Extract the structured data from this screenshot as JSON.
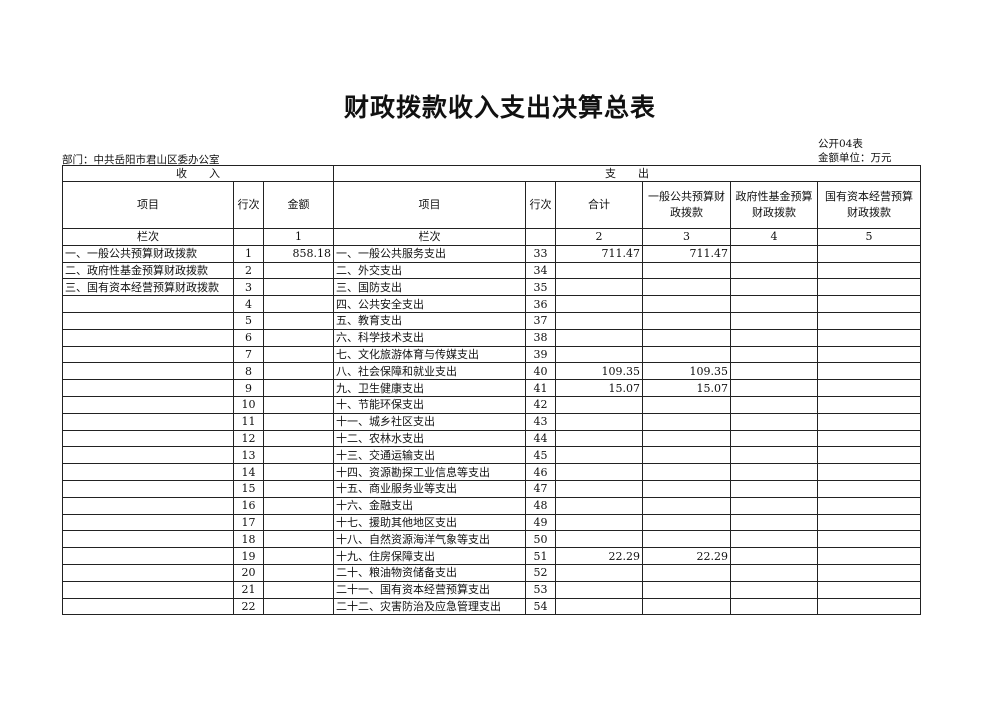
{
  "title": "财政拨款收入支出决算总表",
  "form_no": "公开04表",
  "unit": "金额单位：万元",
  "department": "部门：中共岳阳市君山区委办公室",
  "sections": {
    "income": "收　　入",
    "expense": "支　　出"
  },
  "headers": {
    "item": "项目",
    "line": "行次",
    "amount": "金额",
    "item2": "项目",
    "line2": "行次",
    "total": "合计",
    "general": "一般公共预算财政拨款",
    "fund": "政府性基金预算财政拨款",
    "state": "国有资本经营预算财政拨款"
  },
  "col_row": {
    "label": "栏次",
    "amount": "1",
    "label2": "栏次",
    "total": "2",
    "general": "3",
    "fund": "4",
    "state": "5"
  },
  "rows": [
    {
      "in_item": "一、一般公共预算财政拨款",
      "in_line": "1",
      "in_amt": "858.18",
      "out_item": "一、一般公共服务支出",
      "out_line": "33",
      "total": "711.47",
      "general": "711.47"
    },
    {
      "in_item": "二、政府性基金预算财政拨款",
      "in_line": "2",
      "out_item": "二、外交支出",
      "out_line": "34"
    },
    {
      "in_item": "三、国有资本经营预算财政拨款",
      "in_line": "3",
      "out_item": "三、国防支出",
      "out_line": "35"
    },
    {
      "in_line": "4",
      "out_item": "四、公共安全支出",
      "out_line": "36"
    },
    {
      "in_line": "5",
      "out_item": "五、教育支出",
      "out_line": "37"
    },
    {
      "in_line": "6",
      "out_item": "六、科学技术支出",
      "out_line": "38"
    },
    {
      "in_line": "7",
      "out_item": "七、文化旅游体育与传媒支出",
      "out_line": "39"
    },
    {
      "in_line": "8",
      "out_item": "八、社会保障和就业支出",
      "out_line": "40",
      "total": "109.35",
      "general": "109.35"
    },
    {
      "in_line": "9",
      "out_item": "九、卫生健康支出",
      "out_line": "41",
      "total": "15.07",
      "general": "15.07"
    },
    {
      "in_line": "10",
      "out_item": "十、节能环保支出",
      "out_line": "42"
    },
    {
      "in_line": "11",
      "out_item": "十一、城乡社区支出",
      "out_line": "43"
    },
    {
      "in_line": "12",
      "out_item": "十二、农林水支出",
      "out_line": "44"
    },
    {
      "in_line": "13",
      "out_item": "十三、交通运输支出",
      "out_line": "45"
    },
    {
      "in_line": "14",
      "out_item": "十四、资源勘探工业信息等支出",
      "out_line": "46"
    },
    {
      "in_line": "15",
      "out_item": "十五、商业服务业等支出",
      "out_line": "47"
    },
    {
      "in_line": "16",
      "out_item": "十六、金融支出",
      "out_line": "48"
    },
    {
      "in_line": "17",
      "out_item": "十七、援助其他地区支出",
      "out_line": "49"
    },
    {
      "in_line": "18",
      "out_item": "十八、自然资源海洋气象等支出",
      "out_line": "50"
    },
    {
      "in_line": "19",
      "out_item": "十九、住房保障支出",
      "out_line": "51",
      "total": "22.29",
      "general": "22.29"
    },
    {
      "in_line": "20",
      "out_item": "二十、粮油物资储备支出",
      "out_line": "52"
    },
    {
      "in_line": "21",
      "out_item": "二十一、国有资本经营预算支出",
      "out_line": "53"
    },
    {
      "in_line": "22",
      "out_item": "二十二、灾害防治及应急管理支出",
      "out_line": "54"
    }
  ]
}
